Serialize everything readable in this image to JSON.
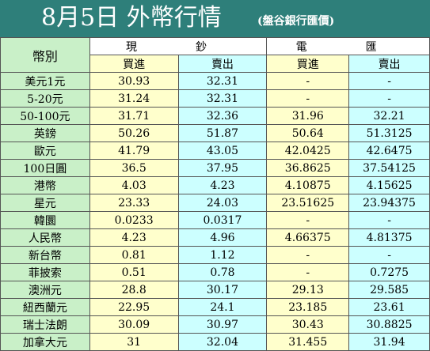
{
  "header": {
    "title": "8月5日 外幣行情",
    "subtitle": "(盤谷銀行匯價)"
  },
  "table": {
    "currency_header": "幣別",
    "groups": [
      "現　鈔",
      "電　匯"
    ],
    "subheaders": [
      "買進",
      "賣出",
      "買進",
      "賣出"
    ],
    "rows": [
      {
        "name": "美元1元",
        "cash_buy": "30.93",
        "cash_sell": "32.31",
        "tt_buy": "-",
        "tt_sell": "-"
      },
      {
        "name": "5-20元",
        "cash_buy": "31.24",
        "cash_sell": "32.31",
        "tt_buy": "-",
        "tt_sell": "-"
      },
      {
        "name": "50-100元",
        "cash_buy": "31.71",
        "cash_sell": "32.36",
        "tt_buy": "31.96",
        "tt_sell": "32.21"
      },
      {
        "name": "英鎊",
        "cash_buy": "50.26",
        "cash_sell": "51.87",
        "tt_buy": "50.64",
        "tt_sell": "51.3125"
      },
      {
        "name": "歐元",
        "cash_buy": "41.79",
        "cash_sell": "43.05",
        "tt_buy": "42.0425",
        "tt_sell": "42.6475"
      },
      {
        "name": "100日圓",
        "cash_buy": "36.5",
        "cash_sell": "37.95",
        "tt_buy": "36.8625",
        "tt_sell": "37.54125"
      },
      {
        "name": "港幣",
        "cash_buy": "4.03",
        "cash_sell": "4.23",
        "tt_buy": "4.10875",
        "tt_sell": "4.15625"
      },
      {
        "name": "星元",
        "cash_buy": "23.33",
        "cash_sell": "24.03",
        "tt_buy": "23.51625",
        "tt_sell": "23.94375"
      },
      {
        "name": "韓圜",
        "cash_buy": "0.0233",
        "cash_sell": "0.0317",
        "tt_buy": "-",
        "tt_sell": "-"
      },
      {
        "name": "人民幣",
        "cash_buy": "4.23",
        "cash_sell": "4.96",
        "tt_buy": "4.66375",
        "tt_sell": "4.81375"
      },
      {
        "name": "新台幣",
        "cash_buy": "0.81",
        "cash_sell": "1.12",
        "tt_buy": "-",
        "tt_sell": "-"
      },
      {
        "name": "菲披索",
        "cash_buy": "0.51",
        "cash_sell": "0.78",
        "tt_buy": "-",
        "tt_sell": "0.7275"
      },
      {
        "name": "澳洲元",
        "cash_buy": "28.8",
        "cash_sell": "30.17",
        "tt_buy": "29.13",
        "tt_sell": "29.585"
      },
      {
        "name": "紐西蘭元",
        "cash_buy": "22.95",
        "cash_sell": "24.1",
        "tt_buy": "23.185",
        "tt_sell": "23.61"
      },
      {
        "name": "瑞士法朗",
        "cash_buy": "30.09",
        "cash_sell": "30.97",
        "tt_buy": "30.43",
        "tt_sell": "30.8825"
      },
      {
        "name": "加拿大元",
        "cash_buy": "31",
        "cash_sell": "32.04",
        "tt_buy": "31.455",
        "tt_sell": "31.94"
      }
    ]
  },
  "colors": {
    "header_bg": "#2e7f7a",
    "green": "#c9f0c8",
    "yellow": "#ffffcc",
    "cyan": "#ccffff"
  }
}
